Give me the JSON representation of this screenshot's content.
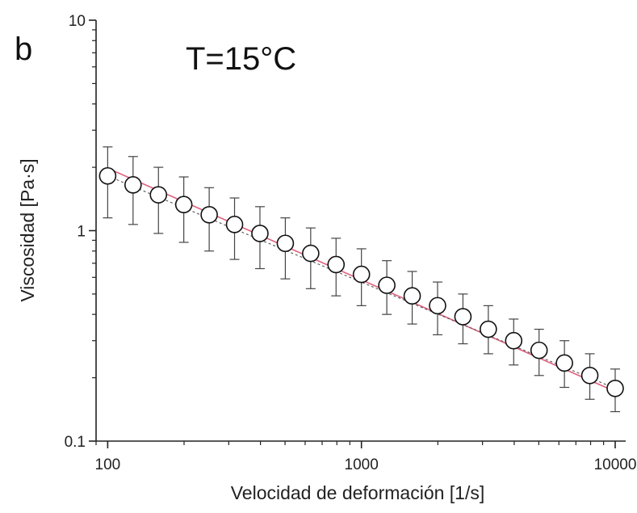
{
  "panel_label": "b",
  "chart_data": {
    "type": "scatter",
    "annotation": "T=15°C",
    "xlabel": "Velocidad de deformación [1/s]",
    "ylabel": "Viscosidad [Pa·s]",
    "xscale": "log",
    "yscale": "log",
    "xlim": [
      90,
      11000
    ],
    "ylim": [
      0.1,
      10
    ],
    "xticks": [
      100,
      1000,
      10000
    ],
    "xtick_labels": [
      "100",
      "1000",
      "10000"
    ],
    "yticks": [
      0.1,
      1,
      10
    ],
    "ytick_labels": [
      "0.1",
      "1",
      "10"
    ],
    "grid": false,
    "legend": "none",
    "series": [
      {
        "marker": "open-circle",
        "x": [
          100,
          125.9,
          158.5,
          199.5,
          251.2,
          316.2,
          398.1,
          501.2,
          631,
          794.3,
          1000,
          1258.9,
          1584.9,
          1995.3,
          2511.9,
          3162.3,
          3981.1,
          5011.9,
          6309.6,
          7943.3,
          10000
        ],
        "y": [
          1.82,
          1.65,
          1.48,
          1.33,
          1.19,
          1.07,
          0.97,
          0.87,
          0.78,
          0.69,
          0.62,
          0.55,
          0.49,
          0.44,
          0.39,
          0.34,
          0.3,
          0.27,
          0.235,
          0.205,
          0.178
        ],
        "y_upper": [
          2.5,
          2.25,
          2.0,
          1.8,
          1.6,
          1.43,
          1.3,
          1.15,
          1.03,
          0.92,
          0.82,
          0.72,
          0.64,
          0.57,
          0.5,
          0.44,
          0.38,
          0.34,
          0.3,
          0.26,
          0.22
        ],
        "y_lower": [
          1.15,
          1.07,
          0.97,
          0.88,
          0.8,
          0.73,
          0.66,
          0.59,
          0.53,
          0.49,
          0.44,
          0.4,
          0.36,
          0.32,
          0.29,
          0.26,
          0.23,
          0.205,
          0.18,
          0.158,
          0.138
        ]
      }
    ],
    "fit_line": {
      "x": [
        100,
        10000
      ],
      "y": [
        1.98,
        0.172
      ],
      "color": "#e0607e"
    },
    "dash_line": {
      "x": [
        100,
        10000
      ],
      "y": [
        1.82,
        0.178
      ],
      "color": "#555555"
    }
  }
}
